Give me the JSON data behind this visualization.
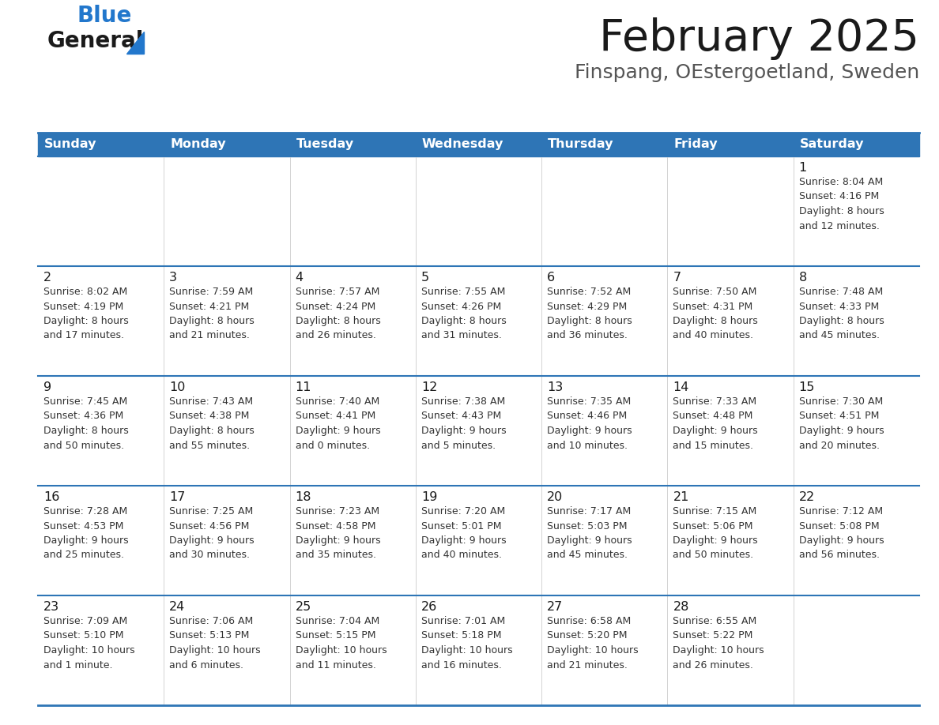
{
  "title": "February 2025",
  "subtitle": "Finspang, OEstergoetland, Sweden",
  "header_color": "#2e75b6",
  "header_text_color": "#ffffff",
  "cell_bg_color": "#ffffff",
  "separator_color": "#2e75b6",
  "text_color": "#333333",
  "days_of_week": [
    "Sunday",
    "Monday",
    "Tuesday",
    "Wednesday",
    "Thursday",
    "Friday",
    "Saturday"
  ],
  "weeks": [
    [
      {
        "day": null,
        "info": null
      },
      {
        "day": null,
        "info": null
      },
      {
        "day": null,
        "info": null
      },
      {
        "day": null,
        "info": null
      },
      {
        "day": null,
        "info": null
      },
      {
        "day": null,
        "info": null
      },
      {
        "day": 1,
        "info": "Sunrise: 8:04 AM\nSunset: 4:16 PM\nDaylight: 8 hours\nand 12 minutes."
      }
    ],
    [
      {
        "day": 2,
        "info": "Sunrise: 8:02 AM\nSunset: 4:19 PM\nDaylight: 8 hours\nand 17 minutes."
      },
      {
        "day": 3,
        "info": "Sunrise: 7:59 AM\nSunset: 4:21 PM\nDaylight: 8 hours\nand 21 minutes."
      },
      {
        "day": 4,
        "info": "Sunrise: 7:57 AM\nSunset: 4:24 PM\nDaylight: 8 hours\nand 26 minutes."
      },
      {
        "day": 5,
        "info": "Sunrise: 7:55 AM\nSunset: 4:26 PM\nDaylight: 8 hours\nand 31 minutes."
      },
      {
        "day": 6,
        "info": "Sunrise: 7:52 AM\nSunset: 4:29 PM\nDaylight: 8 hours\nand 36 minutes."
      },
      {
        "day": 7,
        "info": "Sunrise: 7:50 AM\nSunset: 4:31 PM\nDaylight: 8 hours\nand 40 minutes."
      },
      {
        "day": 8,
        "info": "Sunrise: 7:48 AM\nSunset: 4:33 PM\nDaylight: 8 hours\nand 45 minutes."
      }
    ],
    [
      {
        "day": 9,
        "info": "Sunrise: 7:45 AM\nSunset: 4:36 PM\nDaylight: 8 hours\nand 50 minutes."
      },
      {
        "day": 10,
        "info": "Sunrise: 7:43 AM\nSunset: 4:38 PM\nDaylight: 8 hours\nand 55 minutes."
      },
      {
        "day": 11,
        "info": "Sunrise: 7:40 AM\nSunset: 4:41 PM\nDaylight: 9 hours\nand 0 minutes."
      },
      {
        "day": 12,
        "info": "Sunrise: 7:38 AM\nSunset: 4:43 PM\nDaylight: 9 hours\nand 5 minutes."
      },
      {
        "day": 13,
        "info": "Sunrise: 7:35 AM\nSunset: 4:46 PM\nDaylight: 9 hours\nand 10 minutes."
      },
      {
        "day": 14,
        "info": "Sunrise: 7:33 AM\nSunset: 4:48 PM\nDaylight: 9 hours\nand 15 minutes."
      },
      {
        "day": 15,
        "info": "Sunrise: 7:30 AM\nSunset: 4:51 PM\nDaylight: 9 hours\nand 20 minutes."
      }
    ],
    [
      {
        "day": 16,
        "info": "Sunrise: 7:28 AM\nSunset: 4:53 PM\nDaylight: 9 hours\nand 25 minutes."
      },
      {
        "day": 17,
        "info": "Sunrise: 7:25 AM\nSunset: 4:56 PM\nDaylight: 9 hours\nand 30 minutes."
      },
      {
        "day": 18,
        "info": "Sunrise: 7:23 AM\nSunset: 4:58 PM\nDaylight: 9 hours\nand 35 minutes."
      },
      {
        "day": 19,
        "info": "Sunrise: 7:20 AM\nSunset: 5:01 PM\nDaylight: 9 hours\nand 40 minutes."
      },
      {
        "day": 20,
        "info": "Sunrise: 7:17 AM\nSunset: 5:03 PM\nDaylight: 9 hours\nand 45 minutes."
      },
      {
        "day": 21,
        "info": "Sunrise: 7:15 AM\nSunset: 5:06 PM\nDaylight: 9 hours\nand 50 minutes."
      },
      {
        "day": 22,
        "info": "Sunrise: 7:12 AM\nSunset: 5:08 PM\nDaylight: 9 hours\nand 56 minutes."
      }
    ],
    [
      {
        "day": 23,
        "info": "Sunrise: 7:09 AM\nSunset: 5:10 PM\nDaylight: 10 hours\nand 1 minute."
      },
      {
        "day": 24,
        "info": "Sunrise: 7:06 AM\nSunset: 5:13 PM\nDaylight: 10 hours\nand 6 minutes."
      },
      {
        "day": 25,
        "info": "Sunrise: 7:04 AM\nSunset: 5:15 PM\nDaylight: 10 hours\nand 11 minutes."
      },
      {
        "day": 26,
        "info": "Sunrise: 7:01 AM\nSunset: 5:18 PM\nDaylight: 10 hours\nand 16 minutes."
      },
      {
        "day": 27,
        "info": "Sunrise: 6:58 AM\nSunset: 5:20 PM\nDaylight: 10 hours\nand 21 minutes."
      },
      {
        "day": 28,
        "info": "Sunrise: 6:55 AM\nSunset: 5:22 PM\nDaylight: 10 hours\nand 26 minutes."
      },
      {
        "day": null,
        "info": null
      }
    ]
  ],
  "logo_color_general": "#1a1a1a",
  "logo_color_blue": "#2277cc",
  "logo_triangle_color": "#2277cc",
  "fig_width": 11.88,
  "fig_height": 9.18,
  "dpi": 100
}
